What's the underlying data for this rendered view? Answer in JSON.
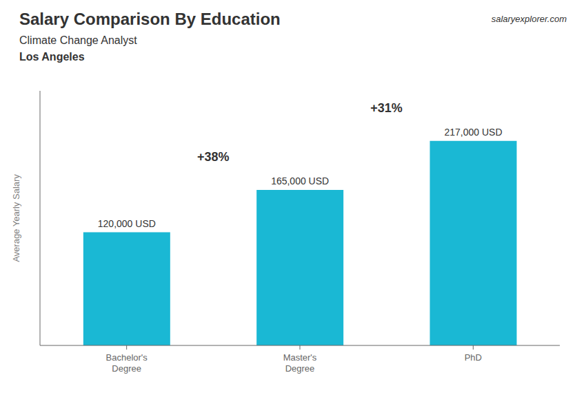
{
  "chart_data": {
    "type": "bar",
    "title": "Salary Comparison By Education",
    "subtitle": "Climate Change Analyst",
    "annotations": [
      "Los Angeles",
      "salaryexplorer.com",
      "+38%",
      "+31%"
    ],
    "categories": [
      "Bachelor's\nDegree",
      "Master's\nDegree",
      "PhD"
    ],
    "values": [
      120000,
      165000,
      217000
    ],
    "value_labels": [
      "120,000 USD",
      "165,000 USD",
      "217,000 USD"
    ],
    "data_labels": true,
    "color": "#1ab8d4",
    "ylim": [
      0,
      270000
    ],
    "ylabel": "Average Yearly Salary",
    "tick_labels": "x",
    "grid": false
  }
}
